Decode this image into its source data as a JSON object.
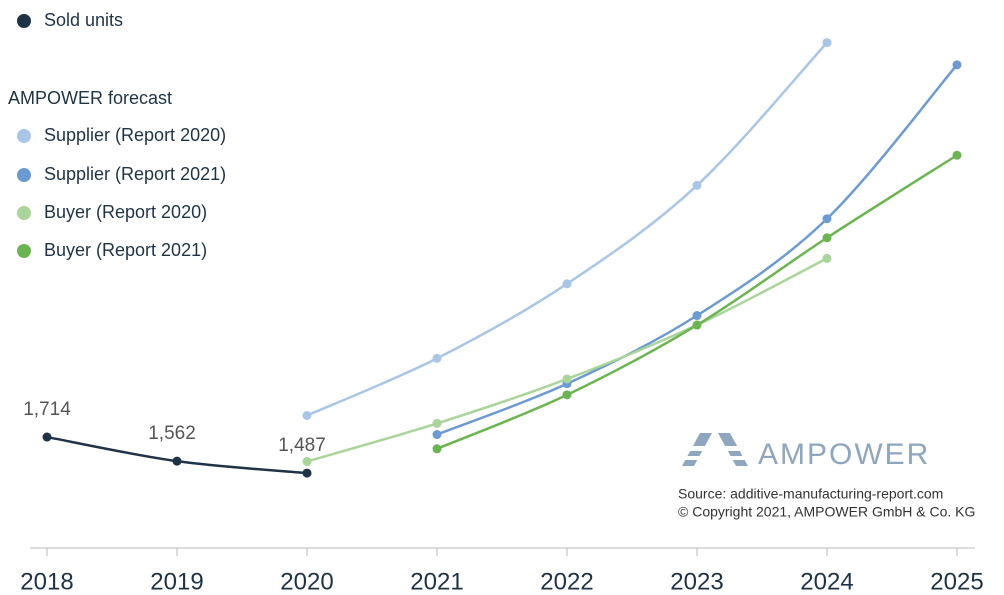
{
  "chart_data": {
    "type": "line",
    "categories": [
      "2018",
      "2019",
      "2020",
      "2021",
      "2022",
      "2023",
      "2024",
      "2025"
    ],
    "ylim": [
      0,
      4500
    ],
    "legend_title": "AMPOWER forecast",
    "logo_text": "AMPOWER",
    "source": [
      "Source: additive-manufacturing-report.com",
      "© Copyright 2021, AMPOWER GmbH & Co. KG"
    ],
    "series": [
      {
        "name": "Sold units",
        "color": "#1f3347",
        "values": [
          1714,
          1562,
          1487,
          null,
          null,
          null,
          null,
          null
        ],
        "value_labels": [
          "1,714",
          "1,562",
          "1,487",
          null,
          null,
          null,
          null,
          null
        ]
      },
      {
        "name": "Supplier (Report 2020)",
        "color": "#a9c6e6",
        "values": [
          null,
          null,
          1850,
          2210,
          2680,
          3300,
          4200,
          null
        ]
      },
      {
        "name": "Supplier (Report 2021)",
        "color": "#6b9bd2",
        "values": [
          null,
          null,
          null,
          1730,
          2050,
          2480,
          3090,
          4060
        ]
      },
      {
        "name": "Buyer (Report 2020)",
        "color": "#a9d49a",
        "values": [
          null,
          null,
          1560,
          1800,
          2080,
          2420,
          2840,
          null
        ]
      },
      {
        "name": "Buyer (Report 2021)",
        "color": "#6ab54f",
        "values": [
          null,
          null,
          null,
          1640,
          1980,
          2420,
          2970,
          3490
        ]
      }
    ]
  }
}
